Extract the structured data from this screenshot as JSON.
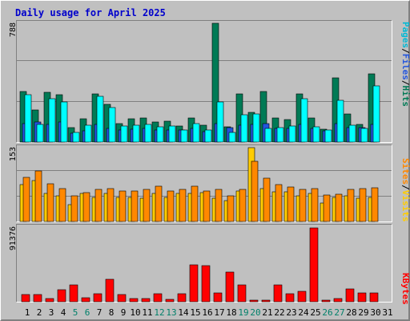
{
  "title": "Daily usage for April 2025",
  "colors": {
    "background": "#c0c0c0",
    "panel_bg": "#c0c0c0",
    "title": "#0000cc",
    "hits": "#007a55",
    "files": "#00b0ff",
    "pages": "#00ffff",
    "pages_label": "#00b8d4",
    "visits": "#ffcc00",
    "sites": "#ff8800",
    "kbytes": "#ff0000",
    "day_weekday": "#000000",
    "day_weekend": "#00806a"
  },
  "legend": {
    "pages": "Pages",
    "files": "Files",
    "hits": "Hits",
    "sep": "/",
    "sites": "Sites",
    "visits": "Visits",
    "kbytes": "KBytes"
  },
  "chart_data": [
    {
      "type": "bar",
      "panel": "hits-files-pages",
      "ymax_label": "788",
      "ylim": [
        0,
        788
      ],
      "categories": [
        "1",
        "2",
        "3",
        "4",
        "5",
        "6",
        "7",
        "8",
        "9",
        "10",
        "11",
        "12",
        "13",
        "14",
        "15",
        "16",
        "17",
        "18",
        "19",
        "20",
        "21",
        "22",
        "23",
        "24",
        "25",
        "26",
        "27",
        "28",
        "29",
        "30",
        "31"
      ],
      "series": [
        {
          "name": "Hits",
          "values": [
            338,
            215,
            332,
            312,
            98,
            152,
            322,
            248,
            125,
            154,
            158,
            135,
            140,
            108,
            162,
            112,
            788,
            102,
            318,
            198,
            338,
            158,
            148,
            318,
            162,
            85,
            428,
            185,
            115,
            452,
            0
          ]
        },
        {
          "name": "Files",
          "values": [
            125,
            135,
            118,
            135,
            60,
            72,
            118,
            88,
            80,
            84,
            90,
            80,
            78,
            82,
            88,
            70,
            122,
            95,
            110,
            115,
            120,
            88,
            92,
            115,
            90,
            75,
            125,
            96,
            95,
            118,
            0
          ]
        },
        {
          "name": "Pages",
          "values": [
            315,
            118,
            285,
            268,
            62,
            112,
            302,
            228,
            105,
            112,
            118,
            102,
            108,
            82,
            125,
            78,
            265,
            62,
            182,
            188,
            90,
            98,
            105,
            285,
            100,
            78,
            278,
            110,
            90,
            375,
            0
          ]
        }
      ]
    },
    {
      "type": "bar",
      "panel": "visits-sites",
      "ymax_label": "153",
      "ylim": [
        0,
        153
      ],
      "categories": [
        "1",
        "2",
        "3",
        "4",
        "5",
        "6",
        "7",
        "8",
        "9",
        "10",
        "11",
        "12",
        "13",
        "14",
        "15",
        "16",
        "17",
        "18",
        "19",
        "20",
        "21",
        "22",
        "23",
        "24",
        "25",
        "26",
        "27",
        "28",
        "29",
        "30",
        "31"
      ],
      "series": [
        {
          "name": "Visits",
          "values": [
            76,
            85,
            58,
            54,
            35,
            58,
            50,
            58,
            50,
            50,
            48,
            58,
            50,
            58,
            58,
            60,
            48,
            44,
            64,
            153,
            68,
            62,
            62,
            54,
            58,
            38,
            50,
            54,
            48,
            50,
            0
          ]
        },
        {
          "name": "Sites",
          "values": [
            92,
            105,
            78,
            68,
            54,
            60,
            66,
            68,
            63,
            63,
            67,
            73,
            63,
            66,
            73,
            63,
            66,
            54,
            67,
            125,
            90,
            77,
            71,
            66,
            68,
            55,
            57,
            66,
            68,
            70,
            0
          ]
        }
      ]
    },
    {
      "type": "bar",
      "panel": "kbytes",
      "ymax_label": "91376",
      "ylim": [
        0,
        91376
      ],
      "categories": [
        "1",
        "2",
        "3",
        "4",
        "5",
        "6",
        "7",
        "8",
        "9",
        "10",
        "11",
        "12",
        "13",
        "14",
        "15",
        "16",
        "17",
        "18",
        "19",
        "20",
        "21",
        "22",
        "23",
        "24",
        "25",
        "26",
        "27",
        "28",
        "29",
        "30",
        "31"
      ],
      "series": [
        {
          "name": "KBytes",
          "values": [
            8500,
            8500,
            3500,
            15000,
            21000,
            4500,
            9500,
            28000,
            9000,
            4000,
            4000,
            10000,
            2500,
            9500,
            46000,
            45000,
            10500,
            37000,
            21000,
            2000,
            2000,
            20500,
            9500,
            13000,
            91376,
            2000,
            3500,
            15500,
            11000,
            11000,
            0
          ]
        }
      ]
    }
  ]
}
